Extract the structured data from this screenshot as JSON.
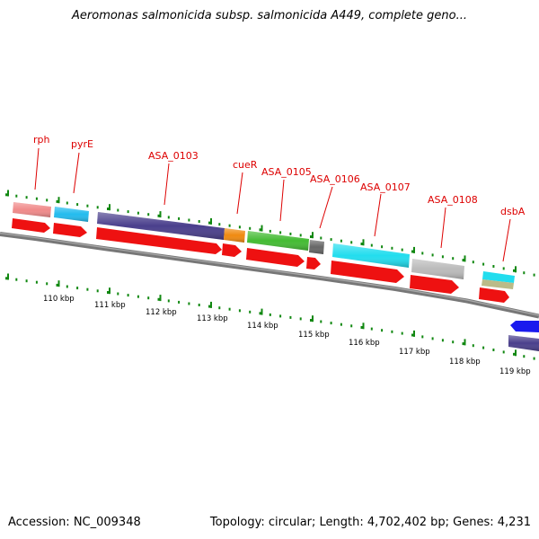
{
  "title": "Aeromonas salmonicida subsp. salmonicida A449, complete geno...",
  "footer": {
    "accession": "Accession: NC_009348",
    "topology": "Topology: circular; Length: 4,702,402 bp; Genes: 4,231"
  },
  "colors": {
    "label_red": "#dd0000",
    "tick_green": "#118811",
    "backbone": "#777777",
    "cds_red": "#ee1111"
  },
  "ruler_labels": [
    "110 kbp",
    "111 kbp",
    "112 kbp",
    "113 kbp",
    "114 kbp",
    "115 kbp",
    "116 kbp",
    "117 kbp",
    "118 kbp",
    "119 kbp"
  ],
  "gene_labels": [
    "rph",
    "pyrE",
    "ASA_0103",
    "cueR",
    "ASA_0105",
    "ASA_0106",
    "ASA_0107",
    "ASA_0108",
    "dsbA"
  ],
  "feature_colors": {
    "rph": "#f08a8a",
    "pyrE": "#22bbee",
    "ASA_0103": "#4a3f8c",
    "cueR": "#f08a10",
    "ASA_0105": "#44bb33",
    "ASA_0106": "#666666",
    "ASA_0107": "#22ddee",
    "ASA_0108": "#bbbbbb",
    "dsbA": "#22ddee"
  }
}
